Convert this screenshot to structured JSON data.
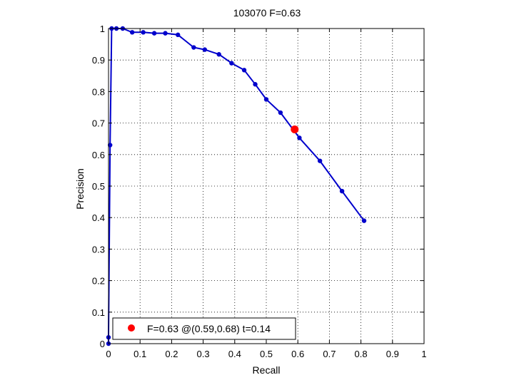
{
  "chart_data": {
    "type": "line",
    "title": "103070 F=0.63",
    "xlabel": "Recall",
    "ylabel": "Precision",
    "xlim": [
      0,
      1
    ],
    "ylim": [
      0,
      1
    ],
    "xticks": [
      "0",
      "0.1",
      "0.2",
      "0.3",
      "0.4",
      "0.5",
      "0.6",
      "0.7",
      "0.8",
      "0.9",
      "1"
    ],
    "yticks": [
      "0",
      "0.1",
      "0.2",
      "0.3",
      "0.4",
      "0.5",
      "0.6",
      "0.7",
      "0.8",
      "0.9",
      "1"
    ],
    "grid": true,
    "legend_position": "bottom-left",
    "series": [
      {
        "color": "#0000cc",
        "x": [
          0.0,
          0.0,
          0.005,
          0.01,
          0.025,
          0.045,
          0.075,
          0.11,
          0.145,
          0.18,
          0.22,
          0.27,
          0.305,
          0.35,
          0.39,
          0.43,
          0.465,
          0.5,
          0.545,
          0.605,
          0.67,
          0.74,
          0.81
        ],
        "y": [
          0.0,
          0.02,
          0.63,
          1.0,
          1.0,
          1.0,
          0.988,
          0.988,
          0.985,
          0.985,
          0.98,
          0.94,
          0.933,
          0.918,
          0.89,
          0.868,
          0.823,
          0.775,
          0.733,
          0.653,
          0.58,
          0.484,
          0.39
        ]
      }
    ],
    "highlight_point": {
      "x": 0.59,
      "y": 0.68,
      "color": "#ff0000",
      "label": "F=0.63 @(0.59,0.68) t=0.14"
    }
  }
}
